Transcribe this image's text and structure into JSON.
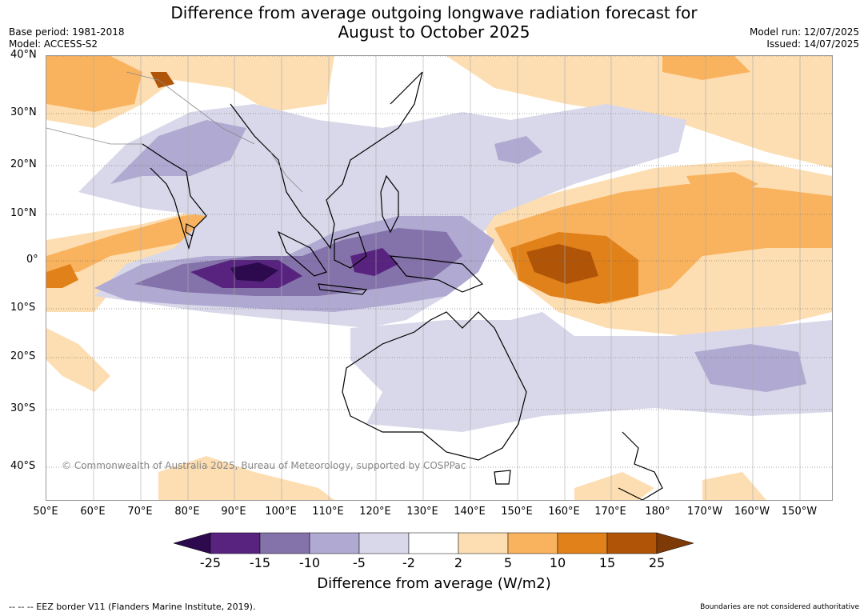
{
  "title_line1": "Difference from average outgoing longwave radiation forecast for",
  "title_line2": "August to October 2025",
  "base_period": "Base period: 1981-2018",
  "model": "Model: ACCESS-S2",
  "model_run": "Model run: 12/07/2025",
  "issued": "Issued: 14/07/2025",
  "lat_labels": [
    "40°N",
    "30°N",
    "20°N",
    "10°N",
    "0°",
    "10°S",
    "20°S",
    "30°S",
    "40°S"
  ],
  "lon_labels": [
    "50°E",
    "60°E",
    "70°E",
    "80°E",
    "90°E",
    "100°E",
    "110°E",
    "120°E",
    "130°E",
    "140°E",
    "150°E",
    "160°E",
    "170°E",
    "180°",
    "170°W",
    "160°W",
    "150°W"
  ],
  "copyright": "© Commonwealth of Australia 2025, Bureau of Meteorology, supported by COSPPac",
  "legend": {
    "title": "Difference from average (W/m2)",
    "ticks": [
      "-25",
      "-15",
      "-10",
      "-5",
      "-2",
      "2",
      "5",
      "10",
      "15",
      "25"
    ],
    "colors": [
      "#2d0a4e",
      "#57237f",
      "#8473ab",
      "#b0a9d1",
      "#d8d8ea",
      "#ffffff",
      "#fddeb2",
      "#f9b35f",
      "#e1811a",
      "#b05508",
      "#7e3a06"
    ]
  },
  "footer_left": "--  --  -- EEZ border V11 (Flanders Marine Institute, 2019).",
  "footer_right": "Boundaries are not considered authoritative"
}
